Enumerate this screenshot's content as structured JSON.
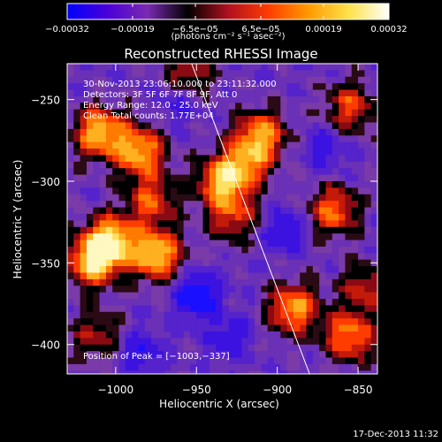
{
  "chart_data": {
    "type": "heatmap",
    "title": "Reconstructed RHESSI Image",
    "xlabel": "Heliocentric X (arcsec)",
    "ylabel": "Heliocentric Y (arcsec)",
    "xlim": [
      -1030,
      -838
    ],
    "ylim": [
      -418,
      -228
    ],
    "x_ticks": [
      -1000,
      -950,
      -900,
      -850
    ],
    "x_tick_labels": [
      "−1000",
      "−950",
      "−900",
      "−850"
    ],
    "y_ticks": [
      -250,
      -300,
      -350,
      -400
    ],
    "y_tick_labels": [
      "−250",
      "−300",
      "−350",
      "−400"
    ],
    "info_lines": [
      "30-Nov-2013 23:06:10.000 to 23:11:32.000",
      "Detectors: 3F 5F 6F 7F 8F 9F, Att 0",
      "Energy Range: 12.0 - 25.0 keV",
      "Clean     Total counts: 1.77E+04"
    ],
    "peak_label": "Position of Peak = [−1003,−337]",
    "peak": [
      -1003,
      -337
    ],
    "colorbar": {
      "range": [
        -0.00032,
        0.00032
      ],
      "tick_values": [
        -0.00032,
        -0.00019,
        -6.5e-05,
        6.5e-05,
        0.00019,
        0.00032
      ],
      "tick_labels": [
        "−0.00032",
        "−0.00019",
        "−6.5e−05",
        "6.5e−05",
        "0.00019",
        "0.00032"
      ],
      "unit_label": "(photons cm⁻² s⁻¹ asec⁻²)",
      "colors": [
        "#0000ff",
        "#4a00d8",
        "#7a2ab0",
        "#000000",
        "#b0101e",
        "#ff3c00",
        "#ff9a00",
        "#ffe14a",
        "#ffffff"
      ]
    },
    "limb_line": {
      "points": [
        [
          -953,
          -228
        ],
        [
          -880,
          -418
        ]
      ],
      "color": "#ffffff"
    },
    "sources": [
      {
        "x": -1010,
        "y": -270,
        "w": 0.9
      },
      {
        "x": -985,
        "y": -282,
        "w": 0.85
      },
      {
        "x": -978,
        "y": -312,
        "w": 0.6
      },
      {
        "x": -1004,
        "y": -337,
        "w": 1.0
      },
      {
        "x": -975,
        "y": -345,
        "w": 0.95
      },
      {
        "x": -1015,
        "y": -350,
        "w": 0.8
      },
      {
        "x": -955,
        "y": -235,
        "w": 0.55
      },
      {
        "x": -910,
        "y": -272,
        "w": 0.8
      },
      {
        "x": -920,
        "y": -290,
        "w": 0.6
      },
      {
        "x": -935,
        "y": -300,
        "w": 0.75
      },
      {
        "x": -928,
        "y": -322,
        "w": 0.55
      },
      {
        "x": -865,
        "y": -318,
        "w": 0.7
      },
      {
        "x": -855,
        "y": -255,
        "w": 0.6
      },
      {
        "x": -890,
        "y": -378,
        "w": 0.8
      },
      {
        "x": -855,
        "y": -395,
        "w": 0.75
      },
      {
        "x": -845,
        "y": -365,
        "w": 0.5
      },
      {
        "x": -1012,
        "y": -395,
        "w": 0.45
      }
    ],
    "sinks": [
      {
        "x": -950,
        "y": -370,
        "w": 1.0
      },
      {
        "x": -960,
        "y": -250,
        "w": 0.5
      },
      {
        "x": -895,
        "y": -330,
        "w": 0.6
      },
      {
        "x": -870,
        "y": -280,
        "w": 0.45
      },
      {
        "x": -985,
        "y": -405,
        "w": 0.55
      },
      {
        "x": -930,
        "y": -395,
        "w": 0.5
      }
    ]
  },
  "timestamp": "17-Dec-2013 11:32"
}
